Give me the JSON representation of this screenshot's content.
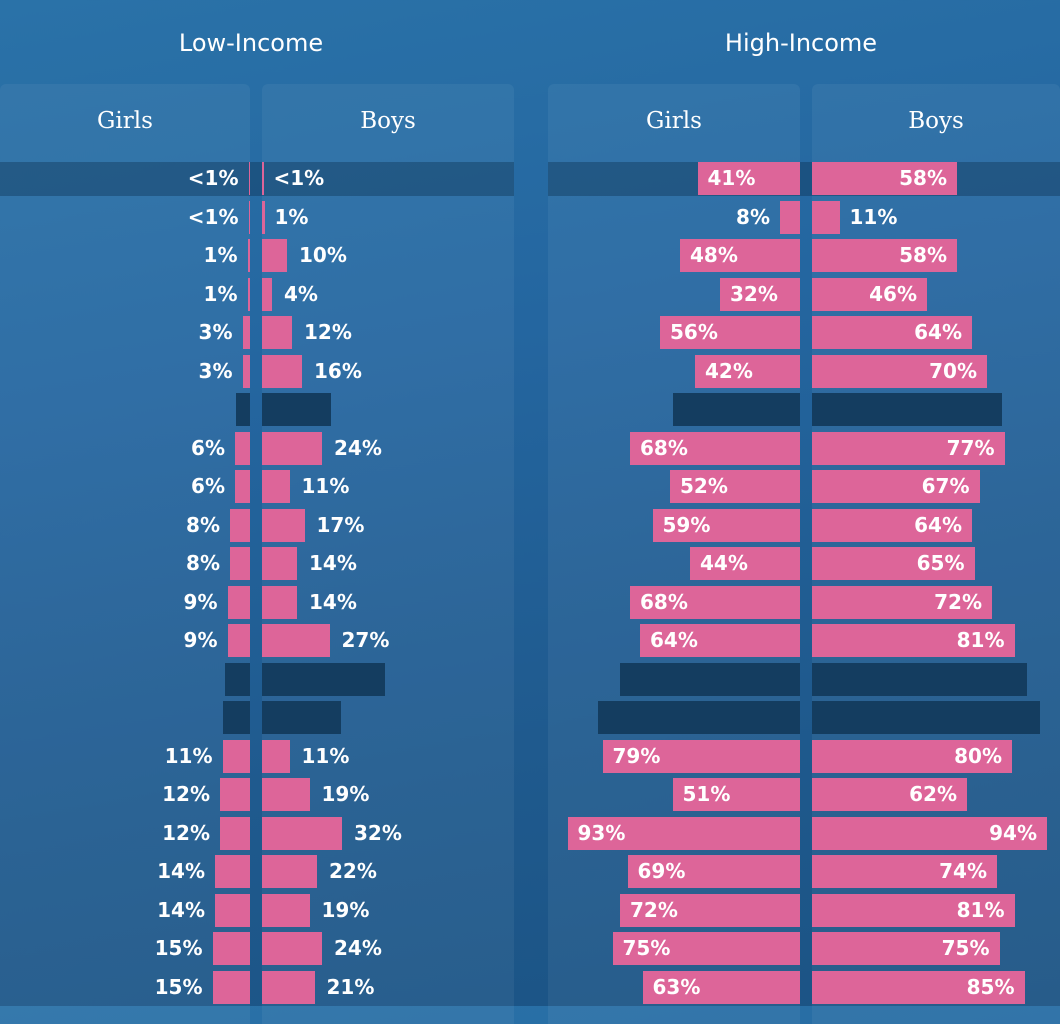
{
  "chart_data": {
    "type": "bar",
    "panels": [
      {
        "title": "Low-Income",
        "series": [
          {
            "name": "Girls",
            "values": [
              0.5,
              0.5,
              1,
              1,
              3,
              3,
              null,
              6,
              6,
              8,
              8,
              9,
              9,
              null,
              null,
              11,
              12,
              12,
              14,
              14,
              15,
              15
            ],
            "labels": [
              "<1%",
              "<1%",
              "1%",
              "1%",
              "3%",
              "3%",
              "",
              "6%",
              "6%",
              "8%",
              "8%",
              "9%",
              "9%",
              "",
              "",
              "11%",
              "12%",
              "12%",
              "14%",
              "14%",
              "15%",
              "15%"
            ]
          },
          {
            "name": "Boys",
            "values": [
              0.5,
              1,
              10,
              4,
              12,
              16,
              null,
              24,
              11,
              17,
              14,
              14,
              27,
              null,
              null,
              11,
              19,
              32,
              22,
              19,
              24,
              21
            ],
            "labels": [
              "<1%",
              "1%",
              "10%",
              "4%",
              "12%",
              "16%",
              "",
              "24%",
              "11%",
              "17%",
              "14%",
              "14%",
              "27%",
              "",
              "",
              "11%",
              "19%",
              "32%",
              "22%",
              "19%",
              "24%",
              "21%"
            ]
          }
        ]
      },
      {
        "title": "High-Income",
        "series": [
          {
            "name": "Girls",
            "values": [
              41,
              8,
              48,
              32,
              56,
              42,
              null,
              68,
              52,
              59,
              44,
              68,
              64,
              null,
              null,
              79,
              51,
              93,
              69,
              72,
              75,
              63
            ],
            "labels": [
              "41%",
              "8%",
              "48%",
              "32%",
              "56%",
              "42%",
              "",
              "68%",
              "52%",
              "59%",
              "44%",
              "68%",
              "64%",
              "",
              "",
              "79%",
              "51%",
              "93%",
              "69%",
              "72%",
              "75%",
              "63%"
            ]
          },
          {
            "name": "Boys",
            "values": [
              58,
              11,
              58,
              46,
              64,
              70,
              null,
              77,
              67,
              64,
              65,
              72,
              81,
              null,
              null,
              80,
              62,
              94,
              74,
              81,
              75,
              85
            ],
            "labels": [
              "58%",
              "11%",
              "58%",
              "46%",
              "64%",
              "70%",
              "",
              "77%",
              "67%",
              "64%",
              "65%",
              "72%",
              "81%",
              "",
              "",
              "80%",
              "62%",
              "94%",
              "74%",
              "81%",
              "75%",
              "85%"
            ]
          }
        ]
      }
    ],
    "blank_rows": [
      {
        "row": 6,
        "low_girls": 5.5,
        "low_boys": 27.5,
        "high_girls": 51,
        "high_boys": 76
      },
      {
        "row": 13,
        "low_girls": 10,
        "low_boys": 49,
        "high_girls": 72,
        "high_boys": 86
      },
      {
        "row": 14,
        "low_girls": 11,
        "low_boys": 31.5,
        "high_girls": 81,
        "high_boys": 91
      }
    ],
    "highlighted_row": 0,
    "xlim": [
      0,
      100
    ],
    "colors": {
      "bar": "#dd6599",
      "blank_bar": "#143d60",
      "background": "#2466a0"
    }
  }
}
